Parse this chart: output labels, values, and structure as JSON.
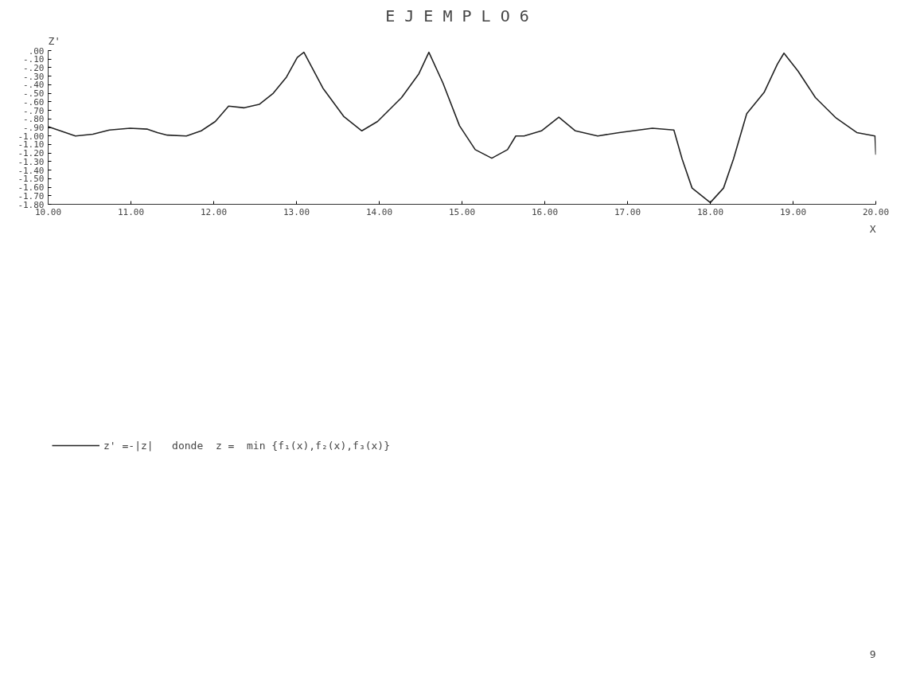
{
  "chart_data": {
    "type": "line",
    "title": "E J E M P L O  6",
    "ylabel": "Z'",
    "xlabel": "X",
    "xlim": [
      10,
      20
    ],
    "ylim": [
      -1.8,
      0
    ],
    "xticks": [
      {
        "value": 10,
        "label": "10.00"
      },
      {
        "value": 11,
        "label": "11.00"
      },
      {
        "value": 12,
        "label": "12.00"
      },
      {
        "value": 13,
        "label": "13.00"
      },
      {
        "value": 14,
        "label": "14.00"
      },
      {
        "value": 15,
        "label": "15.00"
      },
      {
        "value": 16,
        "label": "16.00"
      },
      {
        "value": 17,
        "label": "17.00"
      },
      {
        "value": 18,
        "label": "18.00"
      },
      {
        "value": 19,
        "label": "19.00"
      },
      {
        "value": 20,
        "label": "20.00"
      }
    ],
    "yticks": [
      {
        "value": 0,
        "label": ".00"
      },
      {
        "value": -0.1,
        "label": "-.10"
      },
      {
        "value": -0.2,
        "label": "-.20"
      },
      {
        "value": -0.3,
        "label": "-.30"
      },
      {
        "value": -0.4,
        "label": "-.40"
      },
      {
        "value": -0.5,
        "label": "-.50"
      },
      {
        "value": -0.6,
        "label": "-.60"
      },
      {
        "value": -0.7,
        "label": "-.70"
      },
      {
        "value": -0.8,
        "label": "-.80"
      },
      {
        "value": -0.9,
        "label": "-.90"
      },
      {
        "value": -1.0,
        "label": "-1.00"
      },
      {
        "value": -1.1,
        "label": "-1.10"
      },
      {
        "value": -1.2,
        "label": "-1.20"
      },
      {
        "value": -1.3,
        "label": "-1.30"
      },
      {
        "value": -1.4,
        "label": "-1.40"
      },
      {
        "value": -1.5,
        "label": "-1.50"
      },
      {
        "value": -1.6,
        "label": "-1.60"
      },
      {
        "value": -1.7,
        "label": "-1.70"
      },
      {
        "value": -1.8,
        "label": "-1.80"
      }
    ],
    "grid": false,
    "legend": "bottom",
    "marker": "none",
    "line_style": "solid",
    "series": [
      {
        "name": "z' =-|z|   donde  z =  min {f₁(x),f₂(x),f₃(x)}",
        "color": "#222222",
        "x": [
          10.0,
          10.33,
          10.54,
          10.74,
          10.99,
          11.2,
          11.32,
          11.44,
          11.67,
          11.85,
          12.02,
          12.18,
          12.37,
          12.55,
          12.72,
          12.88,
          13.01,
          13.09,
          13.32,
          13.57,
          13.79,
          13.98,
          14.27,
          14.48,
          14.6,
          14.77,
          14.97,
          15.16,
          15.36,
          15.55,
          15.65,
          15.75,
          15.96,
          16.17,
          16.37,
          16.64,
          16.9,
          17.3,
          17.56,
          17.66,
          17.78,
          18.0,
          18.16,
          18.28,
          18.44,
          18.65,
          18.81,
          18.89,
          19.06,
          19.27,
          19.52,
          19.77,
          19.99,
          20.0
        ],
        "values": [
          -0.89,
          -1.0,
          -0.98,
          -0.93,
          -0.91,
          -0.92,
          -0.96,
          -0.99,
          -1.0,
          -0.94,
          -0.83,
          -0.65,
          -0.67,
          -0.63,
          -0.5,
          -0.31,
          -0.08,
          -0.02,
          -0.44,
          -0.77,
          -0.94,
          -0.83,
          -0.55,
          -0.27,
          -0.02,
          -0.38,
          -0.88,
          -1.16,
          -1.26,
          -1.16,
          -1.0,
          -1.0,
          -0.94,
          -0.78,
          -0.94,
          -1.0,
          -0.96,
          -0.91,
          -0.93,
          -1.27,
          -1.61,
          -1.78,
          -1.61,
          -1.27,
          -0.74,
          -0.49,
          -0.16,
          -0.03,
          -0.24,
          -0.55,
          -0.79,
          -0.96,
          -1.0,
          -1.22
        ]
      }
    ],
    "annotations": [
      "9"
    ]
  }
}
